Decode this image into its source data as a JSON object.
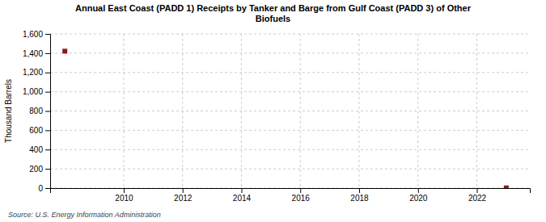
{
  "chart_data": {
    "type": "scatter",
    "title": "Annual East Coast (PADD 1) Receipts by Tanker and Barge from Gulf Coast (PADD 3) of Other\nBiofuels",
    "y_label": "Thousand Barrels",
    "annotations": [
      "Source: U.S. Energy Information Administration"
    ],
    "x": [
      2008,
      2023
    ],
    "values": [
      1421,
      2
    ],
    "color": "#8B1A1A",
    "marker": "square",
    "xlim": [
      2007.5,
      2023.8
    ],
    "ylim": [
      0,
      1600
    ],
    "xticks": [
      2010,
      2012,
      2014,
      2016,
      2018,
      2020,
      2022
    ],
    "yticks": [
      0,
      200,
      400,
      600,
      800,
      {
        "value": 1000,
        "label": "1,000"
      },
      {
        "value": 1200,
        "label": "1,200"
      },
      {
        "value": 1400,
        "label": "1,400"
      },
      {
        "value": 1600,
        "label": "1,600"
      }
    ],
    "grid": true
  }
}
